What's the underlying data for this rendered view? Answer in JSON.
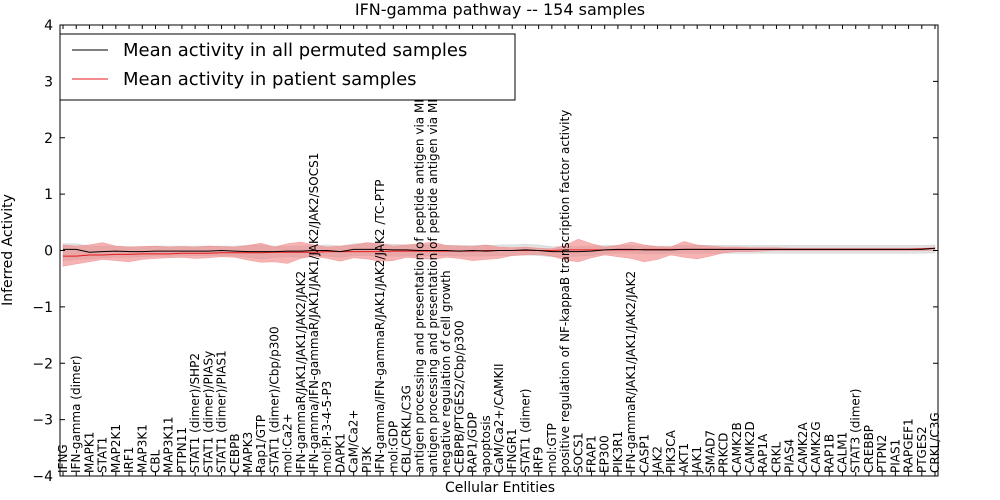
{
  "chart_data": {
    "type": "line",
    "title": "IFN-gamma pathway -- 154 samples",
    "xlabel": "Cellular Entities",
    "ylabel": "Inferred Activity",
    "ylim": [
      -4,
      4
    ],
    "yticks": [
      "4",
      "3",
      "2",
      "1",
      "0",
      "−1",
      "−2",
      "−3",
      "−4"
    ],
    "ytick_values": [
      4,
      3,
      2,
      1,
      0,
      -1,
      -2,
      -3,
      -4
    ],
    "grid": false,
    "legend_position": "top-left",
    "categories": [
      "IFNG",
      "IFN-gamma (dimer)",
      "MAPK1",
      "STAT1",
      "MAP2K1",
      "IRF1",
      "MAP3K1",
      "CBL",
      "MAP3K11",
      "PTPN11",
      "STAT1 (dimer)/SHP2",
      "STAT1 (dimer)/PIASy",
      "STAT1 (dimer)/PIAS1",
      "CEBPB",
      "MAPK3",
      "Rap1/GTP",
      "STAT1 (dimer)/Cbp/p300",
      "mol:Ca2+",
      "IFN-gammaR/JAK1/JAK1/JAK2/JAK2",
      "IFN-gamma/IFN-gammaR/JAK1/JAK1/JAK2/JAK2/SOCS1",
      "mol:PI-3-4-5-P3",
      "DAPK1",
      "CaM/Ca2+",
      "PI3K",
      "IFN-gamma/IFN-gammaR/JAK1/JAK2/JAK2 /TC-PTP",
      "mol:GDP",
      "CBL/CRKL/C3G",
      "antigen processing and presentation of peptide antigen via MHC class I",
      "antigen processing and presentation of peptide antigen via MHC class II",
      "negative regulation of cell growth",
      "CEBPB/PTGES2/Cbp/p300",
      "RAP1/GDP",
      "apoptosis",
      "CaM/Ca2+/CAMKII",
      "IFNGR1",
      "STAT1 (dimer)",
      "IRF9",
      "mol:GTP",
      "positive regulation of NF-kappaB transcription factor activity",
      "SOCS1",
      "FRAP1",
      "EP300",
      "PIK3R1",
      "IFN-gammaR/JAK1/JAK1/JAK2/JAK2",
      "CASP1",
      "JAK2",
      "PIK3CA",
      "AKT1",
      "JAK1",
      "SMAD7",
      "PRKCD",
      "CAMK2B",
      "CAMK2D",
      "RAP1A",
      "CRKL",
      "PIAS4",
      "CAMK2A",
      "CAMK2G",
      "RAP1B",
      "CALM1",
      "STAT3 (dimer)",
      "CREBBP",
      "PTPN2",
      "PIAS1",
      "RAPGEF1",
      "PTGES2",
      "CRKL/C3G"
    ],
    "series": [
      {
        "name": "Mean activity in all permuted samples",
        "color": "#000000",
        "values": [
          0.02,
          0.02,
          -0.03,
          -0.02,
          -0.01,
          -0.02,
          -0.02,
          -0.01,
          -0.01,
          -0.01,
          -0.01,
          -0.01,
          0.0,
          -0.01,
          -0.02,
          -0.02,
          -0.02,
          -0.01,
          -0.01,
          0.0,
          0.0,
          -0.02,
          0.02,
          0.02,
          0.02,
          0.01,
          0.01,
          0.0,
          0.0,
          0.0,
          -0.01,
          0.0,
          -0.01,
          0.0,
          0.0,
          0.01,
          0.0,
          -0.02,
          -0.02,
          -0.02,
          -0.01,
          0.01,
          0.02,
          0.02,
          0.01,
          0.01,
          0.01,
          0.02,
          0.02,
          0.02,
          0.02,
          0.02,
          0.02,
          0.02,
          0.02,
          0.02,
          0.02,
          0.02,
          0.02,
          0.02,
          0.02,
          0.02,
          0.02,
          0.02,
          0.02,
          0.02,
          0.04
        ],
        "band_low": [
          -0.18,
          -0.16,
          -0.15,
          -0.13,
          -0.12,
          -0.12,
          -0.11,
          -0.1,
          -0.1,
          -0.1,
          -0.09,
          -0.09,
          -0.09,
          -0.1,
          -0.12,
          -0.15,
          -0.12,
          -0.11,
          -0.12,
          -0.1,
          -0.1,
          -0.12,
          -0.09,
          -0.09,
          -0.1,
          -0.1,
          -0.1,
          -0.1,
          -0.09,
          -0.09,
          -0.1,
          -0.1,
          -0.1,
          -0.09,
          -0.09,
          -0.08,
          -0.09,
          -0.11,
          -0.11,
          -0.1,
          -0.09,
          -0.06,
          -0.05,
          -0.05,
          -0.06,
          -0.06,
          -0.05,
          -0.05,
          -0.05,
          -0.05,
          -0.05,
          -0.05,
          -0.05,
          -0.05,
          -0.05,
          -0.05,
          -0.05,
          -0.05,
          -0.05,
          -0.05,
          -0.05,
          -0.05,
          -0.05,
          -0.05,
          -0.05,
          -0.05,
          -0.04
        ],
        "band_high": [
          0.12,
          0.12,
          0.08,
          0.08,
          0.08,
          0.07,
          0.07,
          0.08,
          0.08,
          0.08,
          0.08,
          0.08,
          0.08,
          0.08,
          0.09,
          0.1,
          0.08,
          0.08,
          0.08,
          0.09,
          0.1,
          0.08,
          0.12,
          0.12,
          0.12,
          0.11,
          0.1,
          0.1,
          0.1,
          0.09,
          0.09,
          0.09,
          0.09,
          0.1,
          0.1,
          0.11,
          0.1,
          0.07,
          0.07,
          0.07,
          0.08,
          0.09,
          0.09,
          0.09,
          0.08,
          0.08,
          0.08,
          0.09,
          0.09,
          0.09,
          0.09,
          0.09,
          0.09,
          0.09,
          0.09,
          0.09,
          0.09,
          0.09,
          0.09,
          0.09,
          0.09,
          0.09,
          0.09,
          0.09,
          0.09,
          0.09,
          0.1
        ],
        "band_color": "#c8c8c8"
      },
      {
        "name": "Mean activity in patient samples",
        "color": "#e41a1c",
        "values": [
          -0.1,
          -0.1,
          -0.08,
          -0.08,
          -0.07,
          -0.07,
          -0.06,
          -0.06,
          -0.06,
          -0.05,
          -0.05,
          -0.05,
          -0.04,
          -0.04,
          -0.04,
          -0.04,
          -0.03,
          -0.03,
          -0.03,
          -0.03,
          -0.02,
          -0.02,
          -0.02,
          -0.02,
          -0.02,
          -0.01,
          -0.01,
          -0.01,
          -0.01,
          -0.01,
          -0.01,
          -0.01,
          0.0,
          0.0,
          0.0,
          0.0,
          0.0,
          0.0,
          0.01,
          0.01,
          0.01,
          0.01,
          0.01,
          0.01,
          0.02,
          0.02,
          0.02,
          0.02,
          0.02,
          0.02,
          0.02,
          0.02,
          0.02,
          0.02,
          0.02,
          0.02,
          0.02,
          0.02,
          0.02,
          0.02,
          0.02,
          0.02,
          0.02,
          0.02,
          0.02,
          0.03,
          0.04
        ],
        "band_low": [
          -0.28,
          -0.24,
          -0.2,
          -0.16,
          -0.18,
          -0.2,
          -0.16,
          -0.14,
          -0.13,
          -0.12,
          -0.14,
          -0.13,
          -0.11,
          -0.12,
          -0.17,
          -0.21,
          -0.2,
          -0.23,
          -0.14,
          -0.1,
          -0.14,
          -0.19,
          -0.13,
          -0.15,
          -0.19,
          -0.18,
          -0.12,
          -0.14,
          -0.16,
          -0.12,
          -0.14,
          -0.18,
          -0.16,
          -0.14,
          -0.09,
          -0.08,
          -0.07,
          -0.1,
          -0.17,
          -0.2,
          -0.13,
          -0.08,
          -0.11,
          -0.14,
          -0.2,
          -0.16,
          -0.08,
          -0.12,
          -0.15,
          -0.1,
          -0.04,
          -0.02,
          -0.02,
          -0.01,
          0.0,
          0.0,
          0.0,
          0.0,
          0.0,
          0.0,
          0.0,
          0.0,
          0.0,
          0.0,
          0.0,
          0.0,
          0.0
        ],
        "band_high": [
          0.1,
          0.08,
          0.1,
          0.14,
          0.08,
          0.06,
          0.07,
          0.08,
          0.06,
          0.07,
          0.06,
          0.08,
          0.07,
          0.06,
          0.09,
          0.13,
          0.06,
          0.12,
          0.15,
          0.1,
          0.06,
          0.08,
          0.1,
          0.14,
          0.12,
          0.08,
          0.1,
          0.12,
          0.15,
          0.09,
          0.08,
          0.07,
          0.1,
          0.06,
          0.05,
          0.06,
          0.04,
          0.03,
          0.09,
          0.2,
          0.12,
          0.06,
          0.09,
          0.15,
          0.1,
          0.07,
          0.06,
          0.16,
          0.1,
          0.08,
          0.06,
          0.06,
          0.05,
          0.05,
          0.05,
          0.04,
          0.04,
          0.04,
          0.04,
          0.04,
          0.04,
          0.04,
          0.04,
          0.04,
          0.04,
          0.04,
          0.05
        ],
        "band_color": "#f08080"
      }
    ]
  }
}
